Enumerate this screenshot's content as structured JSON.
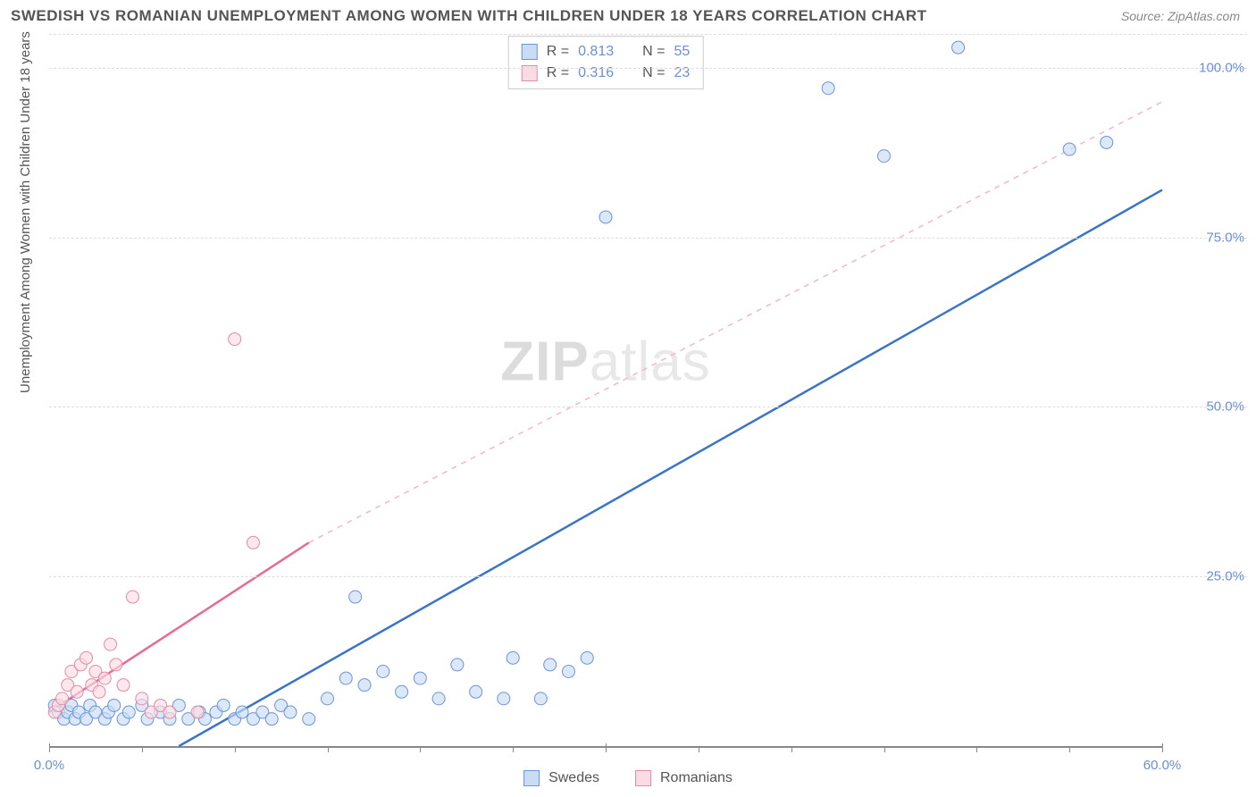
{
  "title": "SWEDISH VS ROMANIAN UNEMPLOYMENT AMONG WOMEN WITH CHILDREN UNDER 18 YEARS CORRELATION CHART",
  "source": "Source: ZipAtlas.com",
  "yaxis_label": "Unemployment Among Women with Children Under 18 years",
  "watermark_bold": "ZIP",
  "watermark_light": "atlas",
  "chart": {
    "type": "scatter",
    "xlim": [
      0,
      60
    ],
    "ylim": [
      0,
      105
    ],
    "x_ticks_major": [
      0,
      30,
      60
    ],
    "x_ticks_minor": [
      5,
      10,
      15,
      20,
      25,
      35,
      40,
      45,
      50,
      55
    ],
    "x_tick_labels": {
      "0": "0.0%",
      "60": "60.0%"
    },
    "y_gridlines": [
      25,
      50,
      75,
      100,
      105
    ],
    "y_tick_labels": {
      "25": "25.0%",
      "50": "50.0%",
      "75": "75.0%",
      "100": "100.0%"
    },
    "background_color": "#ffffff",
    "grid_color": "#dddddd",
    "axis_color": "#888888",
    "label_color": "#6a8fd4",
    "series": [
      {
        "name": "Swedes",
        "fill": "#c9dcf3",
        "stroke": "#6a96d6",
        "marker_r": 7,
        "regression": {
          "x1": 7,
          "y1": 0,
          "x2": 60,
          "y2": 82,
          "dash": false,
          "stroke": "#3a74c9",
          "width": 2.5
        },
        "points": [
          [
            0.3,
            6
          ],
          [
            0.5,
            5
          ],
          [
            0.8,
            4
          ],
          [
            1.0,
            5
          ],
          [
            1.2,
            6
          ],
          [
            1.4,
            4
          ],
          [
            1.6,
            5
          ],
          [
            2.0,
            4
          ],
          [
            2.2,
            6
          ],
          [
            2.5,
            5
          ],
          [
            3.0,
            4
          ],
          [
            3.2,
            5
          ],
          [
            3.5,
            6
          ],
          [
            4.0,
            4
          ],
          [
            4.3,
            5
          ],
          [
            5.0,
            6
          ],
          [
            5.3,
            4
          ],
          [
            6.0,
            5
          ],
          [
            6.5,
            4
          ],
          [
            7.0,
            6
          ],
          [
            7.5,
            4
          ],
          [
            8.1,
            5
          ],
          [
            8.4,
            4
          ],
          [
            9.0,
            5
          ],
          [
            9.4,
            6
          ],
          [
            10.0,
            4
          ],
          [
            10.4,
            5
          ],
          [
            11.0,
            4
          ],
          [
            11.5,
            5
          ],
          [
            12.0,
            4
          ],
          [
            12.5,
            6
          ],
          [
            13.0,
            5
          ],
          [
            14.0,
            4
          ],
          [
            15.0,
            7
          ],
          [
            16.0,
            10
          ],
          [
            16.5,
            22
          ],
          [
            17.0,
            9
          ],
          [
            18.0,
            11
          ],
          [
            19.0,
            8
          ],
          [
            20.0,
            10
          ],
          [
            21.0,
            7
          ],
          [
            22.0,
            12
          ],
          [
            23.0,
            8
          ],
          [
            24.5,
            7
          ],
          [
            25.0,
            13
          ],
          [
            26.5,
            7
          ],
          [
            27.0,
            12
          ],
          [
            28.0,
            11
          ],
          [
            29.0,
            13
          ],
          [
            30.0,
            78
          ],
          [
            42.0,
            97
          ],
          [
            45.0,
            87
          ],
          [
            49.0,
            103
          ],
          [
            55.0,
            88
          ],
          [
            57.0,
            89
          ]
        ]
      },
      {
        "name": "Romanians",
        "fill": "#fbdbe4",
        "stroke": "#e58aa5",
        "marker_r": 7,
        "regression_solid": {
          "x1": 0,
          "y1": 5,
          "x2": 14,
          "y2": 30,
          "dash": false,
          "stroke": "#e76b92",
          "width": 2.5
        },
        "regression_dash": {
          "x1": 14,
          "y1": 30,
          "x2": 60,
          "y2": 95,
          "dash": true,
          "stroke": "#f3b7c8",
          "width": 1.5
        },
        "points": [
          [
            0.3,
            5
          ],
          [
            0.5,
            6
          ],
          [
            0.7,
            7
          ],
          [
            1.0,
            9
          ],
          [
            1.2,
            11
          ],
          [
            1.5,
            8
          ],
          [
            1.7,
            12
          ],
          [
            2.0,
            13
          ],
          [
            2.3,
            9
          ],
          [
            2.5,
            11
          ],
          [
            2.7,
            8
          ],
          [
            3.0,
            10
          ],
          [
            3.3,
            15
          ],
          [
            3.6,
            12
          ],
          [
            4.0,
            9
          ],
          [
            4.5,
            22
          ],
          [
            5.0,
            7
          ],
          [
            5.5,
            5
          ],
          [
            6.0,
            6
          ],
          [
            6.5,
            5
          ],
          [
            8.0,
            5
          ],
          [
            10.0,
            60
          ],
          [
            11.0,
            30
          ]
        ]
      }
    ]
  },
  "legend_top": [
    {
      "swatch_fill": "#c9dcf3",
      "swatch_stroke": "#6a96d6",
      "r_label": "R =",
      "r_value": "0.813",
      "n_label": "N =",
      "n_value": "55"
    },
    {
      "swatch_fill": "#fbdbe4",
      "swatch_stroke": "#e58aa5",
      "r_label": "R =",
      "r_value": "0.316",
      "n_label": "N =",
      "n_value": "23"
    }
  ],
  "legend_bottom": [
    {
      "label": "Swedes",
      "swatch_fill": "#c9dcf3",
      "swatch_stroke": "#6a96d6"
    },
    {
      "label": "Romanians",
      "swatch_fill": "#fbdbe4",
      "swatch_stroke": "#e58aa5"
    }
  ]
}
